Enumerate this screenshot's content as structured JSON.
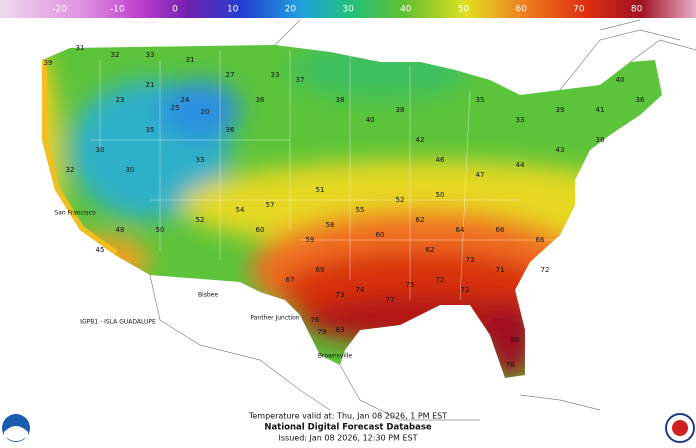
{
  "legend": {
    "ticks": [
      -20,
      -10,
      0,
      10,
      20,
      30,
      40,
      50,
      60,
      70,
      80
    ]
  },
  "footer": {
    "valid": "Temperature valid at: Thu, Jan 08 2026, 1 PM EST",
    "title": "National Digital Forecast Database",
    "issued": "Issued: Jan 08 2026, 12:30 PM EST"
  },
  "places": {
    "island": "IGPB1 - ISLA GUADALUPE",
    "brownsville": "Brownsville",
    "pantherfunction": "Panther Junction",
    "bisbee": "Bisbee",
    "sanfrancisco": "San Francisco"
  },
  "temperatures": [
    39,
    31,
    32,
    33,
    31,
    27,
    33,
    23,
    21,
    24,
    35,
    25,
    20,
    30,
    32,
    30,
    36,
    36,
    37,
    38,
    40,
    38,
    42,
    46,
    35,
    33,
    39,
    41,
    43,
    44,
    47,
    50,
    52,
    55,
    58,
    59,
    60,
    62,
    64,
    66,
    66,
    67,
    69,
    73,
    74,
    77,
    75,
    72,
    72,
    73,
    71,
    76,
    79,
    83,
    80,
    78,
    72,
    60,
    54,
    52,
    50,
    48,
    45,
    40,
    36,
    38,
    33,
    62,
    57,
    51
  ]
}
